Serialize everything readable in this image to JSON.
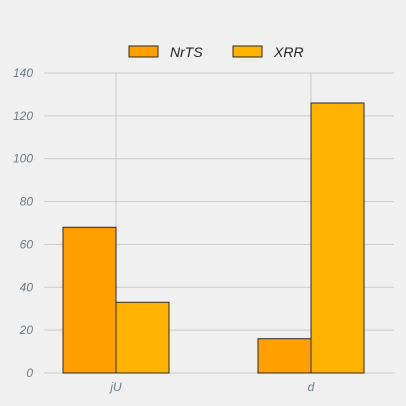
{
  "chart_data": {
    "type": "bar",
    "categories": [
      "jU",
      "d"
    ],
    "series": [
      {
        "name": "NrTS",
        "values": [
          68,
          16
        ],
        "color": "#ffa000"
      },
      {
        "name": "XRR",
        "values": [
          33,
          126
        ],
        "color": "#ffb300"
      }
    ],
    "ylim": [
      0,
      140
    ],
    "y_ticks": [
      0,
      20,
      40,
      60,
      80,
      100,
      120,
      140
    ],
    "grid": true,
    "legend_placement": "top-center"
  }
}
